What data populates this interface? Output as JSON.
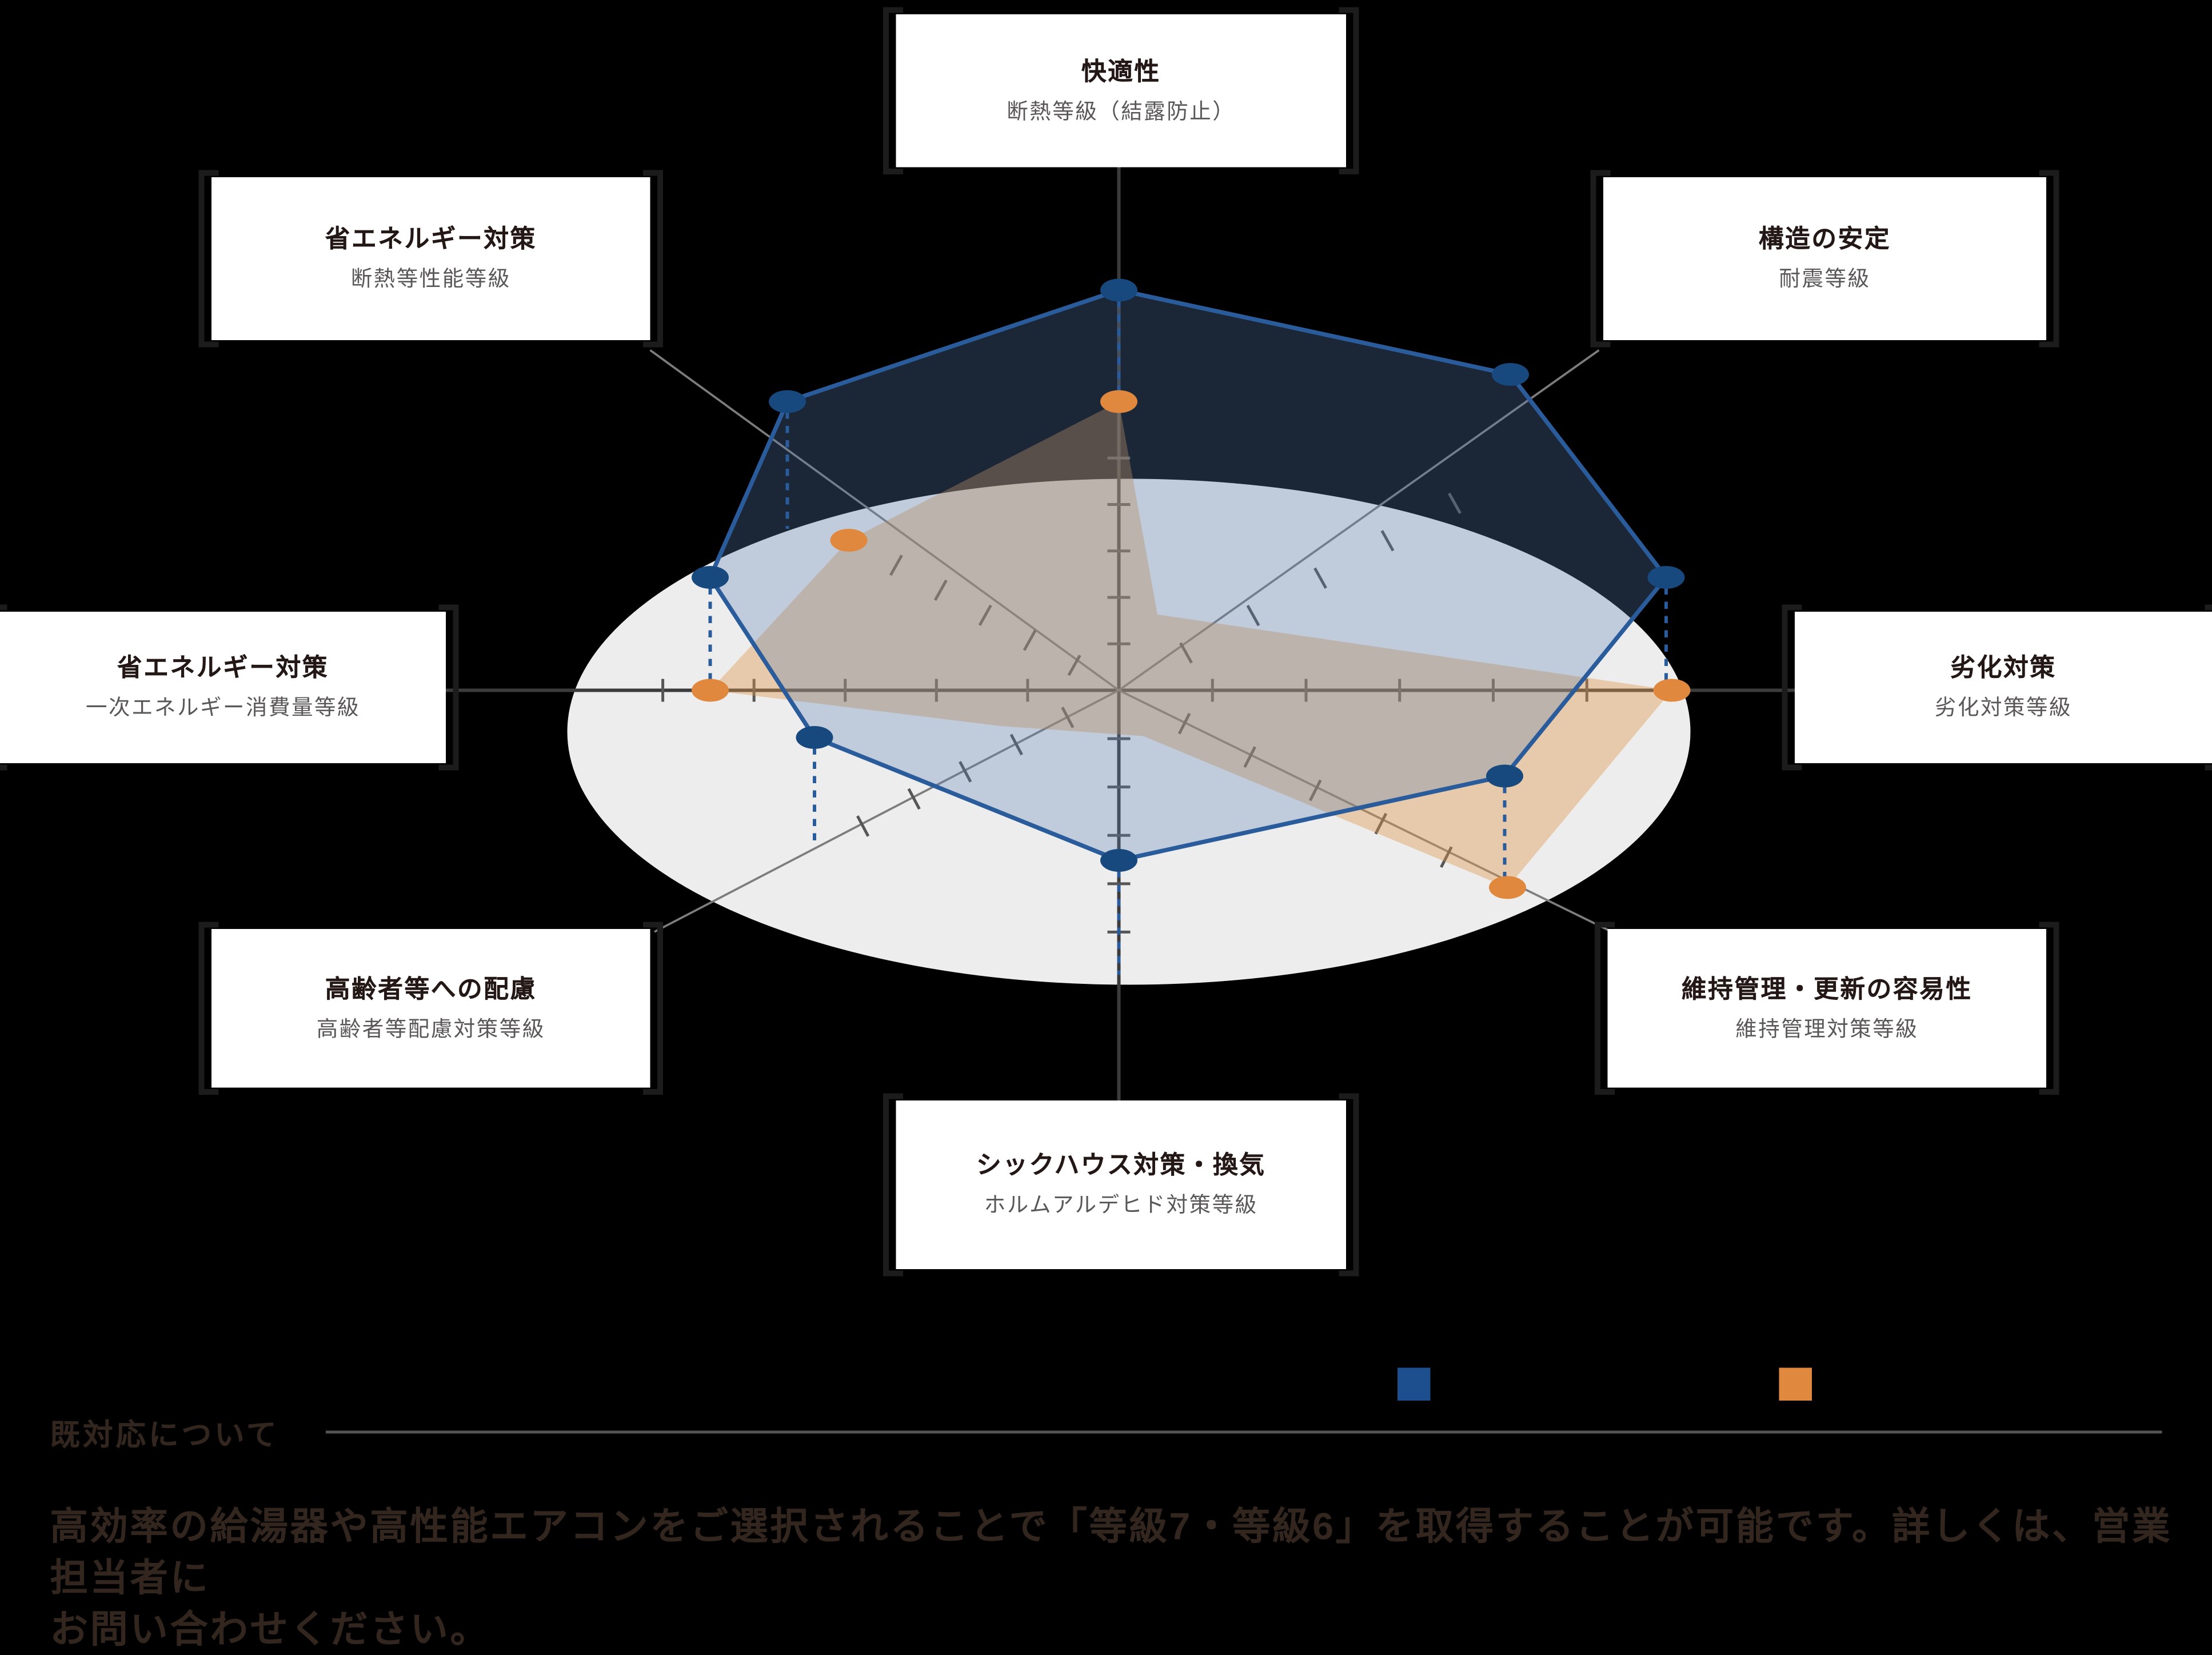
{
  "chart_data": {
    "type": "radar",
    "style": "pseudo-3d tilted plane, 8 axes, no numeric tick labels visible",
    "title": "",
    "categories": [
      {
        "position": "top",
        "title": "快適性",
        "sub": "断熱等級（結露防止）"
      },
      {
        "position": "top-right",
        "title": "構造の安定",
        "sub": "耐震等級"
      },
      {
        "position": "right",
        "title": "劣化対策",
        "sub": "劣化対策等級"
      },
      {
        "position": "bottom-right",
        "title": "維持管理・更新の容易性",
        "sub": "維持管理対策等級"
      },
      {
        "position": "bottom",
        "title": "シックハウス対策・換気",
        "sub": "ホルムアルデヒド対策等級"
      },
      {
        "position": "bottom-left",
        "title": "高齢者等への配慮",
        "sub": "高齢者等配慮対策等級"
      },
      {
        "position": "left",
        "title": "省エネルギー対策",
        "sub": "一次エネルギー消費量等級"
      },
      {
        "position": "top-left",
        "title": "省エネルギー対策",
        "sub": "断熱等性能等級"
      }
    ],
    "series": [
      {
        "name": "blue-series",
        "color": "#17497f",
        "values_norm_estimated": [
          0.95,
          0.9,
          0.95,
          0.85,
          0.85,
          0.8,
          0.75,
          0.85
        ]
      },
      {
        "name": "orange-series",
        "color": "#e0883e",
        "values_norm_estimated": [
          0.55,
          0.15,
          1.0,
          0.97,
          0.12,
          0.1,
          0.55,
          0.52
        ]
      }
    ],
    "ticks_per_half_axis": 5,
    "value_labels_visible": false,
    "legend_position": "bottom-right-of-chart",
    "render": {
      "disc": {
        "cx": 790,
        "cy": 512,
        "rx": 393,
        "ry": 177
      },
      "axis_lines": [
        {
          "main": true,
          "p": [
            [
              783,
              117
            ],
            [
              783,
              770
            ]
          ]
        },
        {
          "main": true,
          "p": [
            [
              312,
              483
            ],
            [
              1256,
              483
            ]
          ]
        },
        {
          "main": false,
          "p": [
            [
              455,
              245
            ],
            [
              783,
              483
            ]
          ]
        },
        {
          "main": false,
          "p": [
            [
              783,
              483
            ],
            [
              1128,
              652
            ]
          ]
        },
        {
          "main": false,
          "p": [
            [
              1119,
              245
            ],
            [
              783,
              483
            ]
          ]
        },
        {
          "main": false,
          "p": [
            [
              783,
              483
            ],
            [
              458,
              652
            ]
          ]
        }
      ],
      "center": [
        783,
        483
      ],
      "spoke_ends": [
        [
          783,
          288
        ],
        [
          1065,
          326
        ],
        [
          1176,
          483
        ],
        [
          1058,
          623
        ],
        [
          783,
          686
        ],
        [
          568,
          597
        ],
        [
          400,
          483
        ],
        [
          596,
          378
        ]
      ],
      "blue": {
        "points": [
          [
            783,
            203
          ],
          [
            1057,
            262
          ],
          [
            1166,
            404
          ],
          [
            1053,
            543
          ],
          [
            783,
            602
          ],
          [
            570,
            516
          ],
          [
            497,
            404
          ],
          [
            551,
            281
          ]
        ]
      },
      "orange": {
        "points": [
          [
            783,
            281
          ],
          [
            810,
            430
          ],
          [
            1170,
            483
          ],
          [
            1055,
            621
          ],
          [
            800,
            515
          ],
          [
            700,
            508
          ],
          [
            497,
            483
          ],
          [
            594,
            378
          ]
        ],
        "markers": [
          [
            783,
            281
          ],
          [
            594,
            378
          ],
          [
            497,
            483
          ],
          [
            1170,
            483
          ],
          [
            1055,
            621
          ]
        ]
      },
      "drops": [
        [
          [
            783,
            210
          ],
          [
            783,
            276
          ]
        ],
        [
          [
            551,
            288
          ],
          [
            551,
            370
          ]
        ],
        [
          [
            497,
            411
          ],
          [
            497,
            477
          ]
        ],
        [
          [
            570,
            523
          ],
          [
            570,
            590
          ]
        ],
        [
          [
            783,
            609
          ],
          [
            783,
            682
          ]
        ],
        [
          [
            1053,
            550
          ],
          [
            1053,
            615
          ]
        ],
        [
          [
            1166,
            411
          ],
          [
            1166,
            477
          ]
        ]
      ],
      "colors": {
        "disc": "#ededed",
        "mainAxis": "#3c3c3c",
        "diagAxis": "#7d7d7d",
        "tick": "#565656",
        "blueStroke": "#2a5c9c",
        "blueFill": "rgba(90,125,180,0.30)",
        "blueMarker": "#17497f",
        "orangeFill": "rgba(223,150,73,0.40)",
        "orangeMarker": "#e0883e",
        "drop": "#2a5c9c"
      }
    }
  },
  "legend": {
    "items": [
      {
        "name": "blue-series",
        "color": "#1d4f8e",
        "label": ""
      },
      {
        "name": "orange-series",
        "color": "#e0883e",
        "label": ""
      }
    ]
  },
  "note": {
    "heading": "既対応について",
    "body_line1": "高効率の給湯器や高性能エアコンをご選択されることで「等級7・等級6」を取得することが可能です。詳しくは、営業担当者に",
    "body_line2": "お問い合わせください。"
  }
}
